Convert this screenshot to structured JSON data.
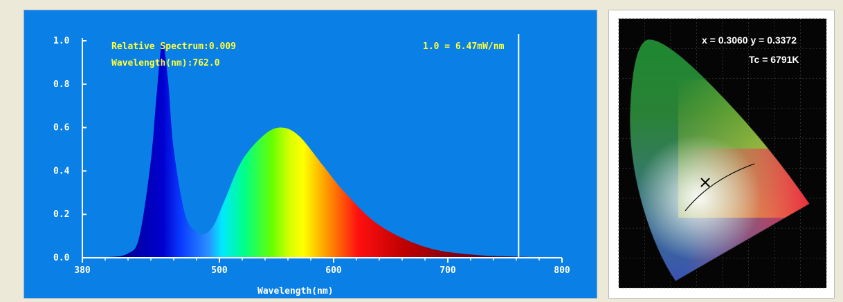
{
  "chart_data": [
    {
      "type": "area",
      "xlabel": "Wavelength(nm)",
      "ylabel": "",
      "xlim": [
        380,
        800
      ],
      "ylim": [
        0,
        1.0
      ],
      "x_ticks": [
        380,
        500,
        600,
        700,
        800
      ],
      "y_ticks": [
        "0.0",
        "0.2",
        "0.4",
        "0.6",
        "0.8",
        "1.0"
      ],
      "grid": false,
      "background_color": "#0a7fe6",
      "series": [
        {
          "x": [
            380,
            400,
            420,
            430,
            440,
            445,
            450,
            455,
            460,
            470,
            480,
            487,
            495,
            505,
            520,
            540,
            555,
            570,
            590,
            610,
            640,
            680,
            720,
            760,
            800
          ],
          "values": [
            0,
            0.002,
            0.02,
            0.1,
            0.45,
            0.75,
            0.99,
            0.82,
            0.5,
            0.2,
            0.12,
            0.11,
            0.15,
            0.27,
            0.45,
            0.57,
            0.6,
            0.56,
            0.43,
            0.3,
            0.15,
            0.05,
            0.015,
            0.005,
            0.001
          ]
        }
      ],
      "annotations": {
        "relative_spectrum": "Relative Spectrum:0.009",
        "wavelength_readout": "Wavelength(nm):762.0",
        "scale": "1.0 = 6.47mW/nm",
        "cursor_wavelength": 762
      }
    },
    {
      "type": "scatter",
      "title": "",
      "annotations": {
        "xy_readout": "x = 0.3060 y = 0.3372",
        "cct_readout": "Tc = 6791K"
      },
      "series": [
        {
          "x": [
            0.306
          ],
          "values": [
            0.3372
          ]
        }
      ]
    }
  ]
}
